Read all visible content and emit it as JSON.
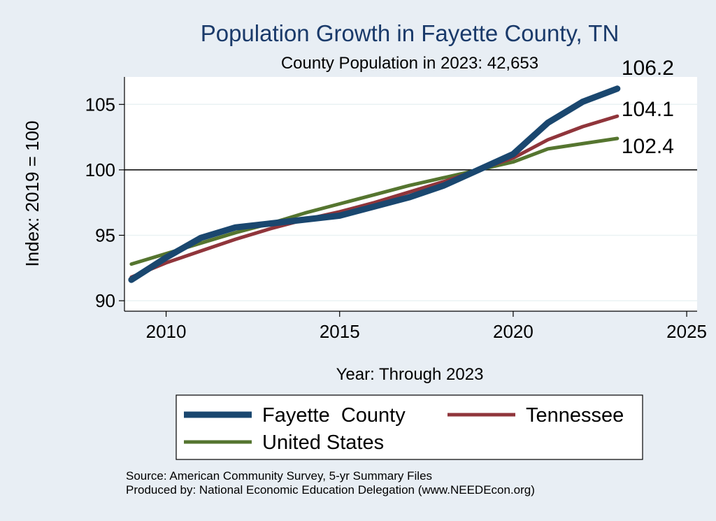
{
  "chart_data": {
    "type": "line",
    "title": "Population Growth in Fayette County, TN",
    "subtitle": "County Population in 2023: 42,653",
    "xlabel": "Year: Through 2023",
    "ylabel": "Index: 2019 = 100",
    "xlim": [
      2008.8,
      2025.3
    ],
    "ylim": [
      89.2,
      107.1
    ],
    "xticks": [
      2010,
      2015,
      2020,
      2025
    ],
    "yticks": [
      90,
      95,
      100,
      105
    ],
    "reference_line": 100,
    "x": [
      2009,
      2010,
      2011,
      2012,
      2013,
      2014,
      2015,
      2016,
      2017,
      2018,
      2019,
      2020,
      2021,
      2022,
      2023
    ],
    "series": [
      {
        "name": "Fayette  County",
        "color": "#1a476f",
        "values": [
          91.6,
          93.3,
          94.8,
          95.6,
          95.9,
          96.2,
          96.5,
          97.2,
          97.9,
          98.8,
          100.0,
          101.2,
          103.6,
          105.2,
          106.2
        ],
        "end_label": "106.2"
      },
      {
        "name": "Tennessee",
        "color": "#90353b",
        "values": [
          91.8,
          92.9,
          93.8,
          94.7,
          95.5,
          96.2,
          96.8,
          97.5,
          98.3,
          99.1,
          100.0,
          100.9,
          102.3,
          103.3,
          104.1
        ],
        "end_label": "104.1"
      },
      {
        "name": "United States",
        "color": "#55752f",
        "values": [
          92.8,
          93.6,
          94.4,
          95.2,
          95.9,
          96.7,
          97.4,
          98.1,
          98.8,
          99.4,
          100.0,
          100.6,
          101.6,
          102.0,
          102.4
        ],
        "end_label": "102.4"
      }
    ],
    "legend_position": "bottom"
  },
  "footer": {
    "source": "Source: American Community Survey, 5-yr Summary Files",
    "produced_by": "Produced by: National Economic Education Delegation (www.NEEDEcon.org)"
  }
}
